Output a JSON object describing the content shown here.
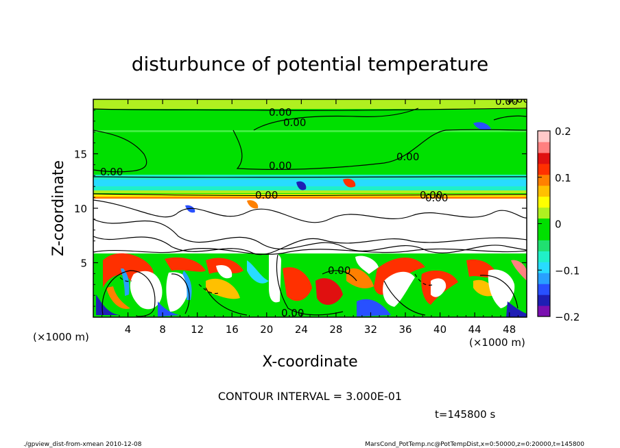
{
  "chart_data": {
    "type": "heatmap",
    "title": "disturbunce of potential temperature",
    "xlabel": "X-coordinate",
    "ylabel": "Z-coordinate",
    "x_unit": "(×1000 m)",
    "y_unit": "(×1000 m)",
    "xlim": [
      0,
      50
    ],
    "ylim": [
      0,
      20
    ],
    "x_ticks": [
      4,
      8,
      12,
      16,
      20,
      24,
      28,
      32,
      36,
      40,
      44,
      48
    ],
    "y_ticks": [
      5,
      10,
      15
    ],
    "colorbar": {
      "min": -0.2,
      "max": 0.2,
      "tick_values": [
        0.2,
        0.1,
        0,
        -0.1,
        -0.2
      ],
      "tick_labels": [
        "0.2",
        "0.1",
        "0",
        "−0.1",
        "−0.2"
      ],
      "colors": [
        "#7a0fb0",
        "#1e1eb4",
        "#2850ff",
        "#28a0ff",
        "#28dcff",
        "#20f0c8",
        "#20e070",
        "#00e000",
        "#00e000",
        "#b0f020",
        "#ffff00",
        "#ffc000",
        "#ff8000",
        "#ff3000",
        "#e01010",
        "#ff8080",
        "#ffc8c8"
      ]
    },
    "contour_labels": [
      "0.00",
      "0.00",
      "0.00",
      "0.00",
      "0.00",
      "0.00",
      "0.00",
      "0.00",
      "0.00",
      "0.00",
      "−0.00",
      "0.00"
    ],
    "contour_interval_text": "CONTOUR INTERVAL = 3.000E-01",
    "time_text": "t=145800 s",
    "grid": false
  },
  "footer": {
    "left": "./gpview_dist-from-xmean  2010-12-08",
    "right": "MarsCond_PotTemp.nc@PotTempDist,x=0:50000,z=0:20000,t=145800"
  },
  "colors": {
    "background_field": "#00e000",
    "white_core": "#ffffff",
    "contour_line": "#000000"
  }
}
